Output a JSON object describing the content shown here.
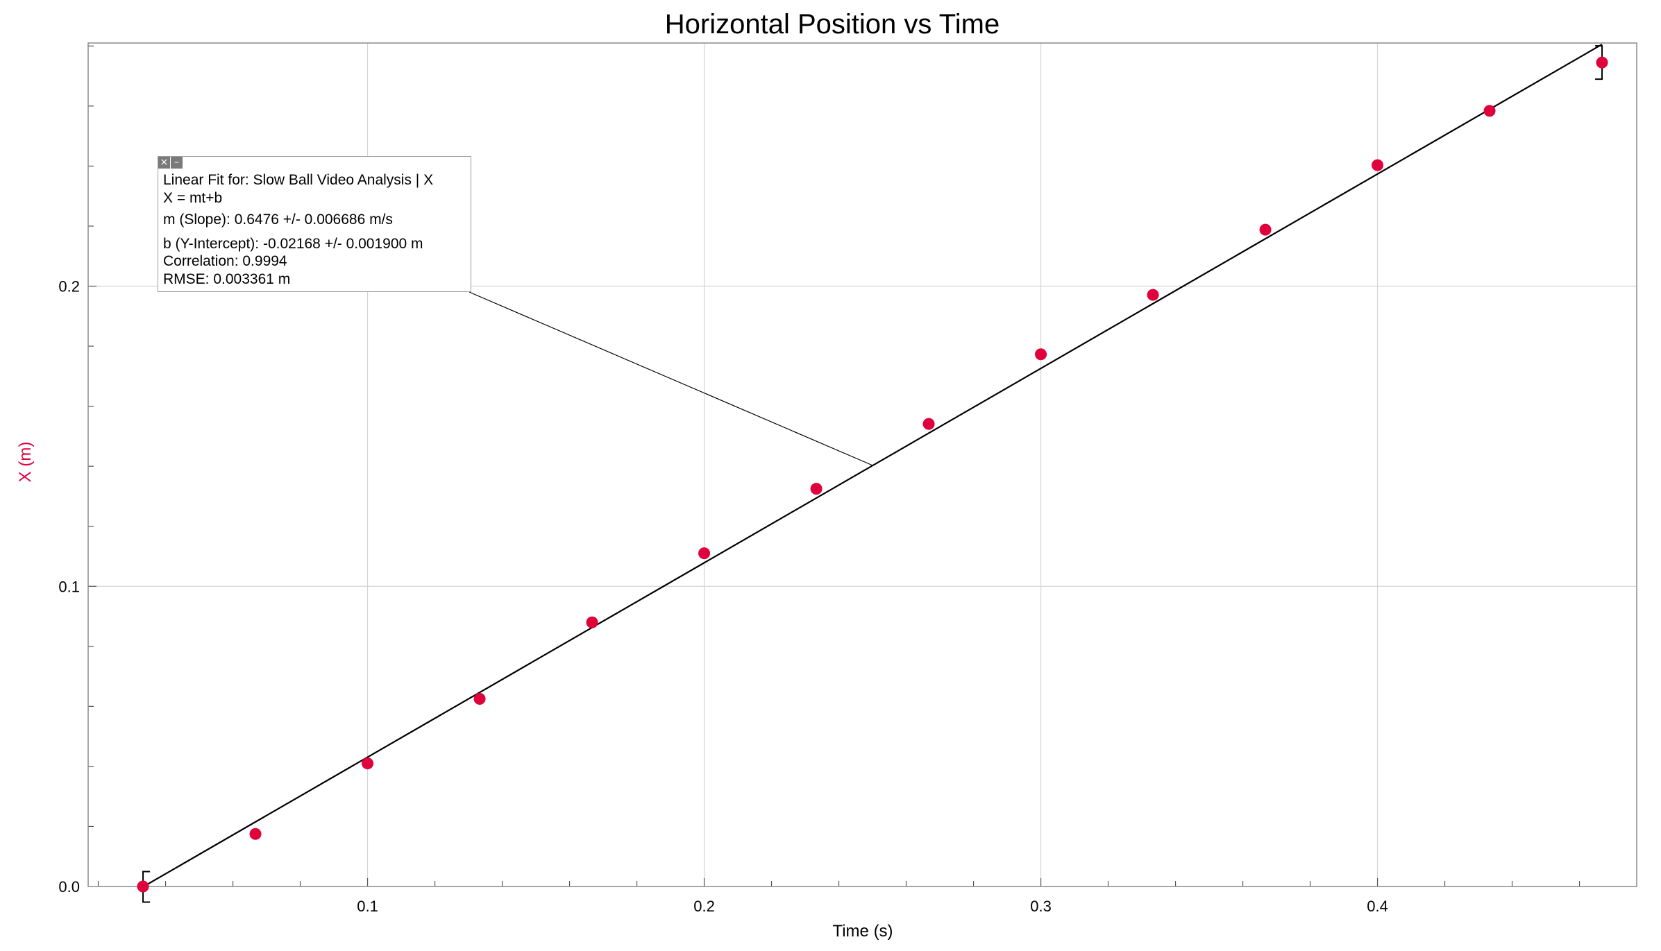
{
  "chart_data": {
    "type": "scatter",
    "title": "Horizontal Position vs Time",
    "xlabel": "Time (s)",
    "ylabel": "X (m)",
    "xlim": [
      0.017,
      0.477
    ],
    "ylim": [
      0.0,
      0.281
    ],
    "x_ticks": [
      "0.1",
      "0.2",
      "0.3",
      "0.4"
    ],
    "x_tick_values": [
      0.1,
      0.2,
      0.3,
      0.4
    ],
    "y_ticks": [
      "0.0",
      "0.1",
      "0.2"
    ],
    "y_tick_values": [
      0.0,
      0.1,
      0.2
    ],
    "grid": true,
    "colors": {
      "points": "#e0003c",
      "fit_line": "#000000",
      "ylabel": "#e0003c",
      "grid": "#d4d4d4"
    },
    "series": [
      {
        "x": [
          0.0333,
          0.0667,
          0.1,
          0.1333,
          0.1667,
          0.2,
          0.2333,
          0.2667,
          0.3,
          0.3333,
          0.3667,
          0.4,
          0.4333,
          0.4667
        ],
        "y": [
          0.0,
          0.0175,
          0.041,
          0.0625,
          0.088,
          0.111,
          0.1325,
          0.1541,
          0.1773,
          0.1971,
          0.2188,
          0.2403,
          0.2584,
          0.2745
        ]
      }
    ],
    "fit": {
      "slope": 0.6476,
      "intercept": -0.02168,
      "x_range": [
        0.0333,
        0.4667
      ]
    },
    "annotation_anchor": [
      0.25,
      0.1403
    ],
    "bracket_range": [
      0.0333,
      0.4667
    ]
  },
  "fit_box": {
    "control_icons": [
      "close-icon",
      "minimize-icon"
    ],
    "title": "Linear Fit for: Slow Ball Video Analysis | X",
    "equation": "X = mt+b",
    "slope": "m (Slope): 0.6476 +/- 0.006686 m/s",
    "intercept": "b (Y-Intercept): -0.02168 +/- 0.001900 m",
    "correlation": "Correlation: 0.9994",
    "rmse": "RMSE: 0.003361 m"
  }
}
